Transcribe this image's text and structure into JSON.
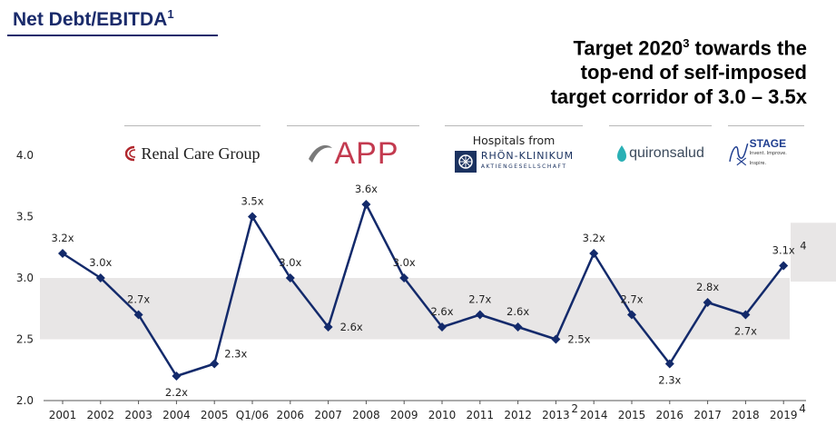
{
  "page": {
    "title": "Net Debt/EBITDA",
    "title_sup": "1",
    "headline_line1_pre": "Target 2020",
    "headline_line1_sup": "3",
    "headline_line1_post": " towards the",
    "headline_line2": "top-end of self-imposed",
    "headline_line3": "target corridor of 3.0 – 3.5x"
  },
  "logos": {
    "renal": "Renal Care Group",
    "app": "APP",
    "hospitals_from": "Hospitals from",
    "rhoen": "RHÖN-KLINIKUM",
    "rhoen_sub": "AKTIENGESELLSCHAFT",
    "quiron": "quironsalud",
    "nx_stage": "STAGE",
    "nx_tagline": "Invent. Improve. Inspire."
  },
  "colors": {
    "line": "#132a6b",
    "band": "#e8e6e6",
    "title": "#1a2b6b"
  },
  "chart_data": {
    "type": "line",
    "categories": [
      "2001",
      "2002",
      "2003",
      "2004",
      "2005",
      "Q1/06",
      "2006",
      "2007",
      "2008",
      "2009",
      "2010",
      "2011",
      "2012",
      "2013",
      "2014",
      "2015",
      "2016",
      "2017",
      "2018",
      "2019"
    ],
    "category_sups": [
      "",
      "",
      "",
      "",
      "",
      "",
      "",
      "",
      "",
      "",
      "",
      "",
      "",
      "2",
      "",
      "",
      "",
      "",
      "",
      "4"
    ],
    "values": [
      3.2,
      3.0,
      2.7,
      2.2,
      2.3,
      3.5,
      3.0,
      2.6,
      3.6,
      3.0,
      2.6,
      2.7,
      2.6,
      2.5,
      3.2,
      2.7,
      2.3,
      2.8,
      2.7,
      3.1
    ],
    "labels": [
      "3.2x",
      "3.0x",
      "2.7x",
      "2.2x",
      "2.3x",
      "3.5x",
      "3.0x",
      "2.6x",
      "3.6x",
      "3.0x",
      "2.6x",
      "2.7x",
      "2.6x",
      "2.5x",
      "3.2x",
      "2.7x",
      "2.3x",
      "2.8x",
      "2.7x",
      "3.1x"
    ],
    "label_sups": [
      "",
      "",
      "",
      "",
      "",
      "",
      "",
      "",
      "",
      "",
      "",
      "",
      "",
      "",
      "",
      "",
      "",
      "",
      "",
      "4"
    ],
    "label_positions": [
      "above",
      "above",
      "above",
      "below",
      "above-right",
      "above",
      "above",
      "right",
      "above",
      "above",
      "above",
      "above",
      "above",
      "right",
      "above",
      "above",
      "below",
      "above",
      "below",
      "above"
    ],
    "yticks": [
      "2.0",
      "2.5",
      "3.0",
      "3.5",
      "4.0"
    ],
    "ylim": [
      2.0,
      4.0
    ],
    "band_corridor": [
      2.5,
      3.0
    ],
    "band_target": [
      2.97,
      3.45
    ],
    "legend": "none",
    "title": "Net Debt/EBITDA"
  }
}
